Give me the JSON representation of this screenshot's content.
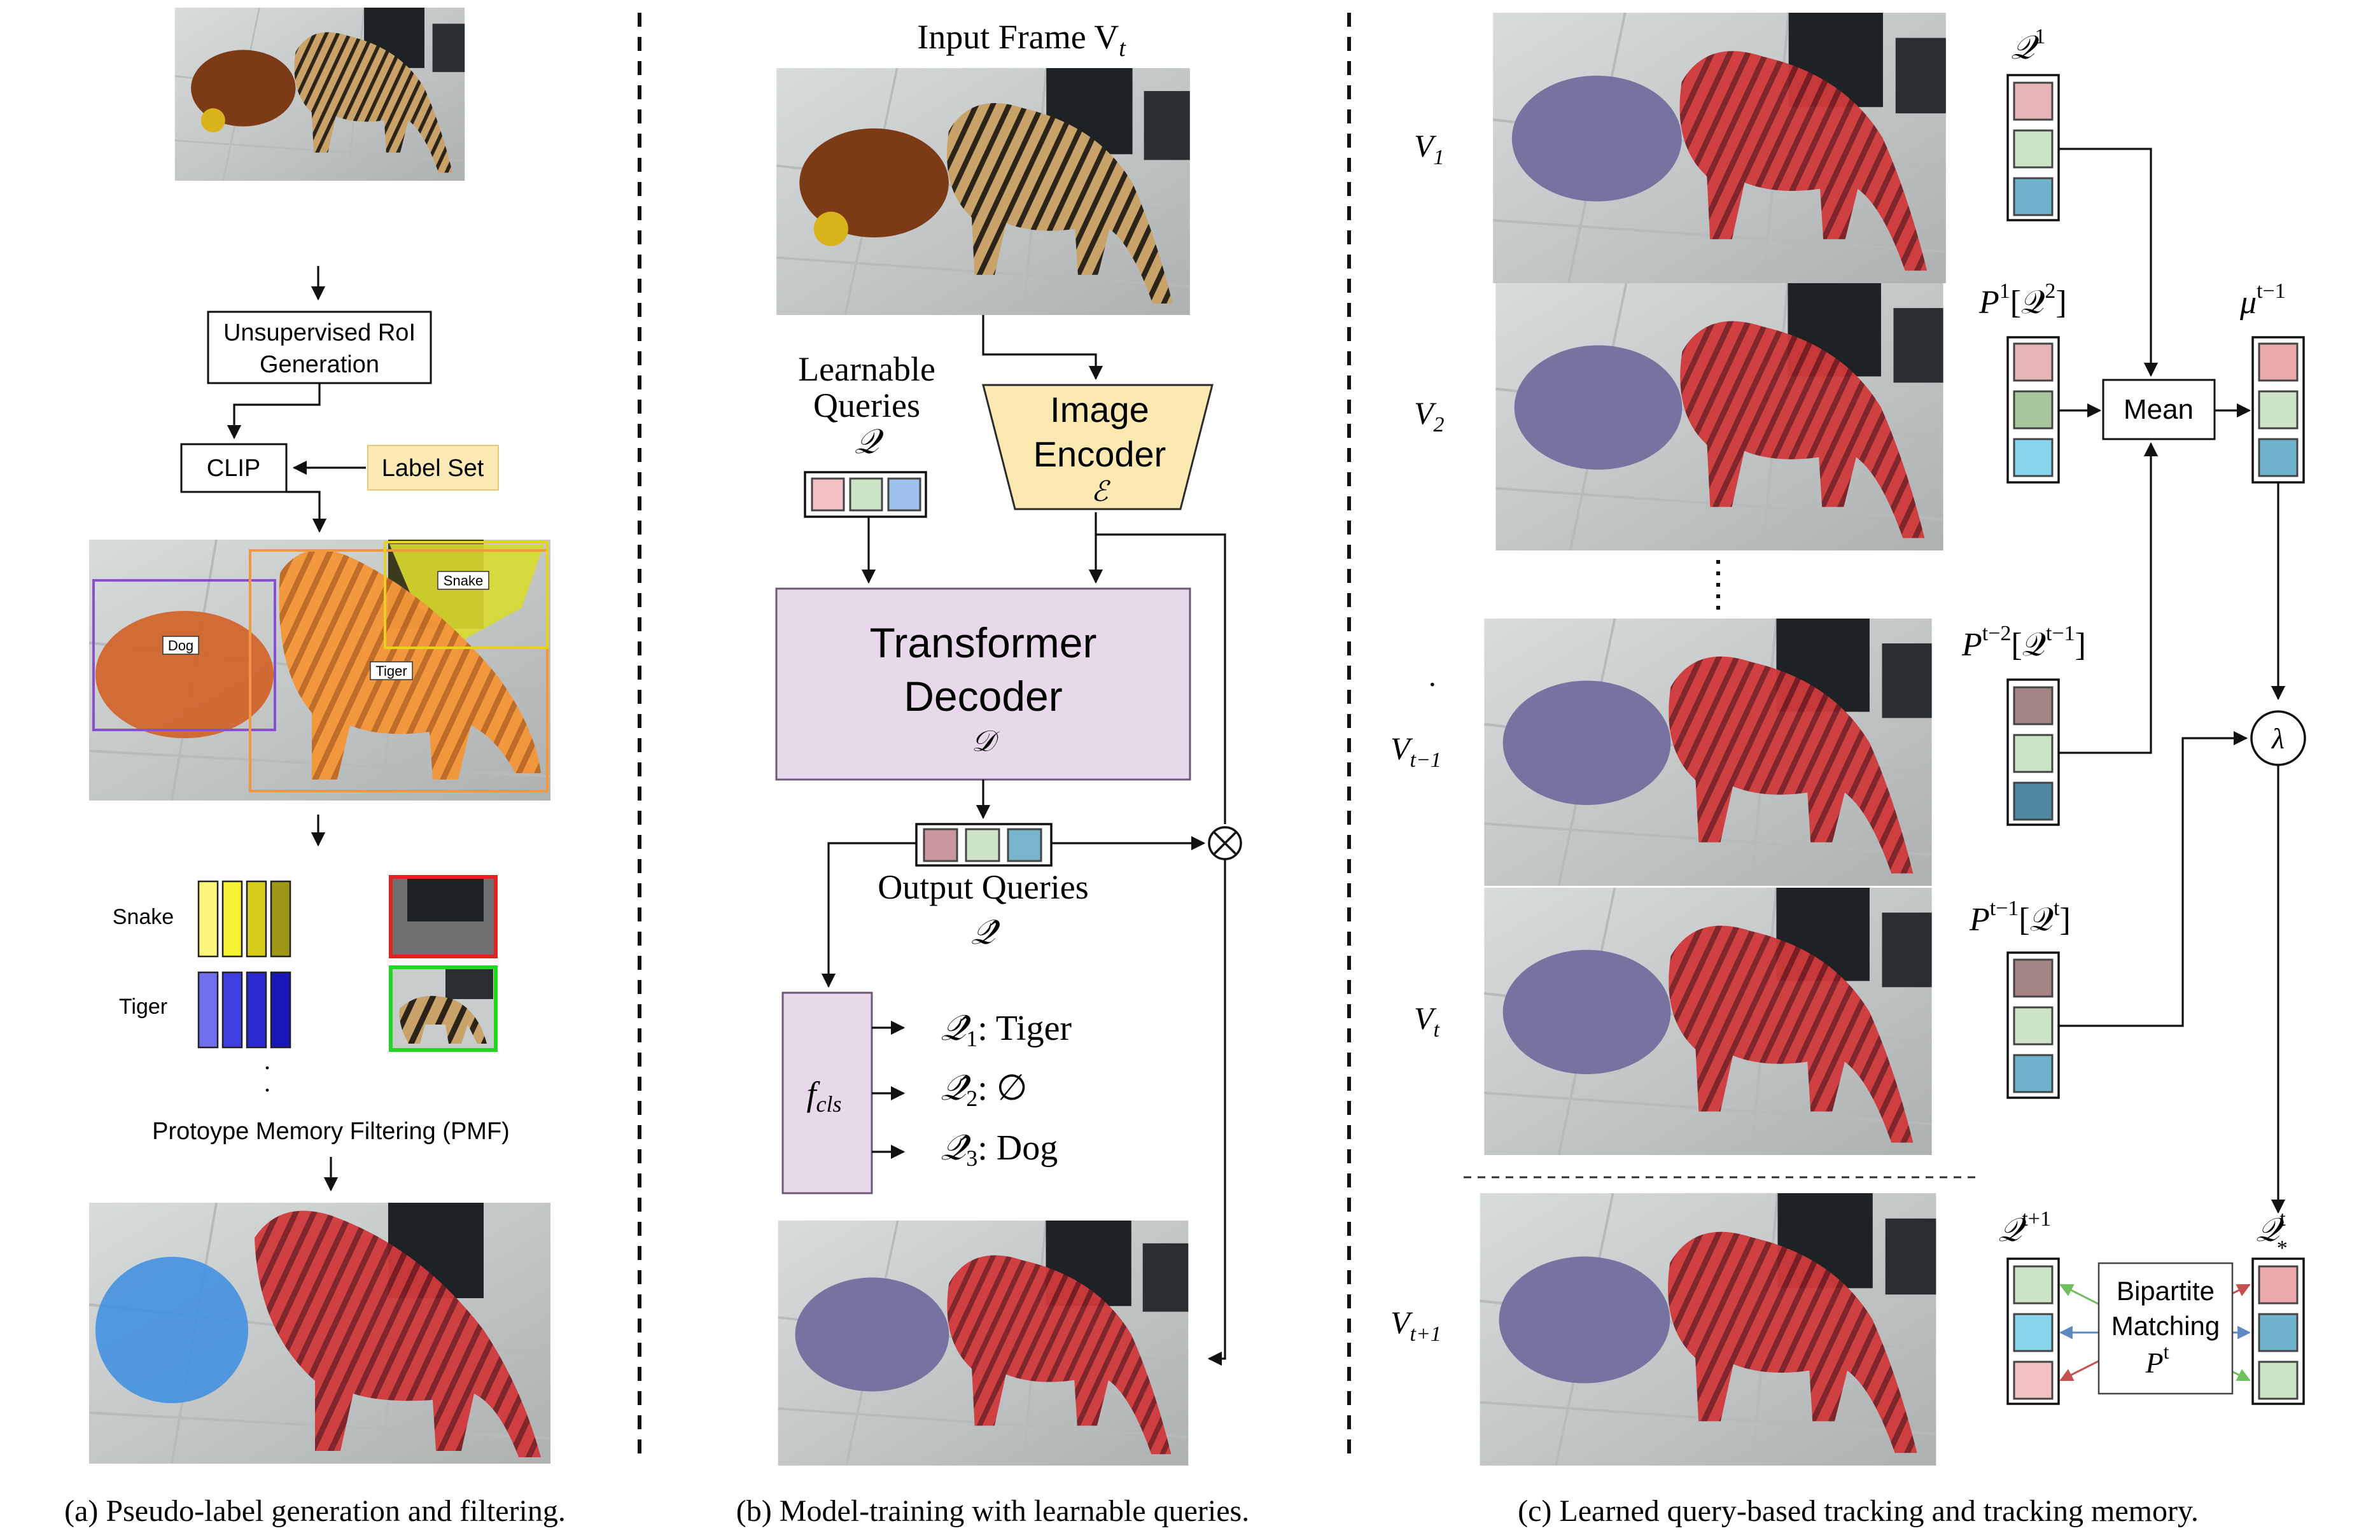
{
  "panel_a": {
    "rpn_line1": "Unsupervised RoI",
    "rpn_line2": "Generation",
    "clip": "CLIP",
    "label_set": "Label Set",
    "box_dog": "Dog",
    "box_tiger": "Tiger",
    "box_snake": "Snake",
    "proto_snake": "Snake",
    "proto_tiger": "Tiger",
    "pmf": "Protoype Memory Filtering (PMF)",
    "caption": "(a) Pseudo-label generation and filtering."
  },
  "panel_b": {
    "input_frame": "Input Frame V",
    "input_frame_sub": "t",
    "learnable_1": "Learnable",
    "learnable_2": "Queries",
    "learnable_sym": "𝒬",
    "encoder_1": "Image",
    "encoder_2": "Encoder",
    "encoder_sym": "ℰ",
    "decoder_1": "Transformer",
    "decoder_2": "Decoder",
    "decoder_sym": "𝒟",
    "output_queries": "Output Queries",
    "output_sym": "𝒬̂",
    "fcls": "f",
    "fcls_sub": "cls",
    "q1_sub": "1",
    "q1_label": ": Tiger",
    "q2_sub": "2",
    "q2_label": ": ∅",
    "q3_sub": "3",
    "q3_label": ": Dog",
    "caption": "(b) Model-training with learnable queries."
  },
  "panel_c": {
    "frame_v1": "1",
    "frame_v2": "2",
    "frame_vtm1": "t−1",
    "frame_vt": "t",
    "frame_vtp1": "t+1",
    "q1_label": "1",
    "p1q2_label": "P",
    "p1q2_sup": "1",
    "p1q2_inner": "2",
    "ptm2_label": "P",
    "ptm2_sup": "t−2",
    "ptm2_inner": "t−1",
    "ptm1_label": "P",
    "ptm1_sup": "t−1",
    "ptm1_inner": "t",
    "mean": "Mean",
    "mu_sup": "t−1",
    "lambda": "λ",
    "qtp1_sup": "t+1",
    "qstar_sup": "t",
    "bipartite_1": "Bipartite",
    "bipartite_2": "Matching",
    "bipartite_p": "P",
    "bipartite_p_sup": "t",
    "caption": "(c) Learned query-based tracking and tracking memory."
  },
  "colors": {
    "label_set_fill": "#fde9b4",
    "encoder_fill": "#fce9b2",
    "decoder_fill": "#e7d9ea",
    "fcls_fill": "#e7d9ea",
    "dog_box": "#8a4fd0",
    "tiger_box": "#f0983a",
    "snake_box": "#e6d21a",
    "mask_red": "#c8252d",
    "mask_purple": "#6e6b9c",
    "mask_blue": "#3f8fe0",
    "proto_yellow": "#f4f032",
    "proto_blue": "#3232d8",
    "thumb_red_border": "#e22222",
    "thumb_green_border": "#22d622",
    "query_pink": "#f2c1c4",
    "query_green": "#cde3c5",
    "query_blue": "#9fc1ee",
    "query_teal": "#78b4cb",
    "match_green": "#6fbf5d",
    "match_blue": "#5e89c2",
    "match_red": "#c55050"
  }
}
